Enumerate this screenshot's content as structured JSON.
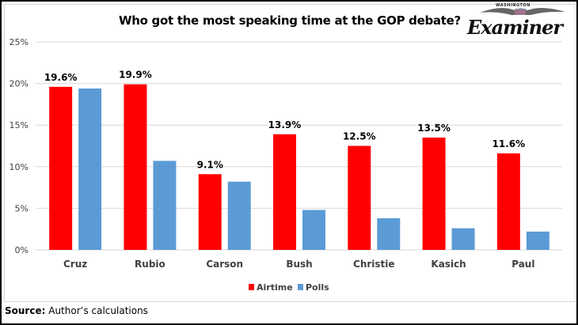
{
  "header": {
    "title": "Who got the most speaking time at the GOP debate?",
    "logo_top": "WASHINGTON",
    "logo_name": "Examiner"
  },
  "footer": {
    "source_label": "Source:",
    "source_text": "Author’s calculations"
  },
  "colors": {
    "airtime": "#ff0000",
    "polls": "#5b9bd5",
    "grid": "#d9d9d9"
  },
  "chart_data": {
    "type": "bar",
    "title": "Who got the most speaking time at the GOP debate?",
    "xlabel": "",
    "ylabel": "",
    "ylim": [
      0,
      25
    ],
    "yticks": [
      0,
      5,
      10,
      15,
      20,
      25
    ],
    "ytick_labels": [
      "0%",
      "5%",
      "10%",
      "15%",
      "20%",
      "25%"
    ],
    "grid": true,
    "legend_position": "bottom",
    "categories": [
      "Cruz",
      "Rubio",
      "Carson",
      "Bush",
      "Christie",
      "Kasich",
      "Paul"
    ],
    "series": [
      {
        "name": "Airtime",
        "values": [
          19.6,
          19.9,
          9.1,
          13.9,
          12.5,
          13.5,
          11.6
        ],
        "labels": [
          "19.6%",
          "19.9%",
          "9.1%",
          "13.9%",
          "12.5%",
          "13.5%",
          "11.6%"
        ]
      },
      {
        "name": "Polls",
        "values": [
          19.4,
          10.7,
          8.2,
          4.8,
          3.8,
          2.6,
          2.2
        ]
      }
    ]
  }
}
